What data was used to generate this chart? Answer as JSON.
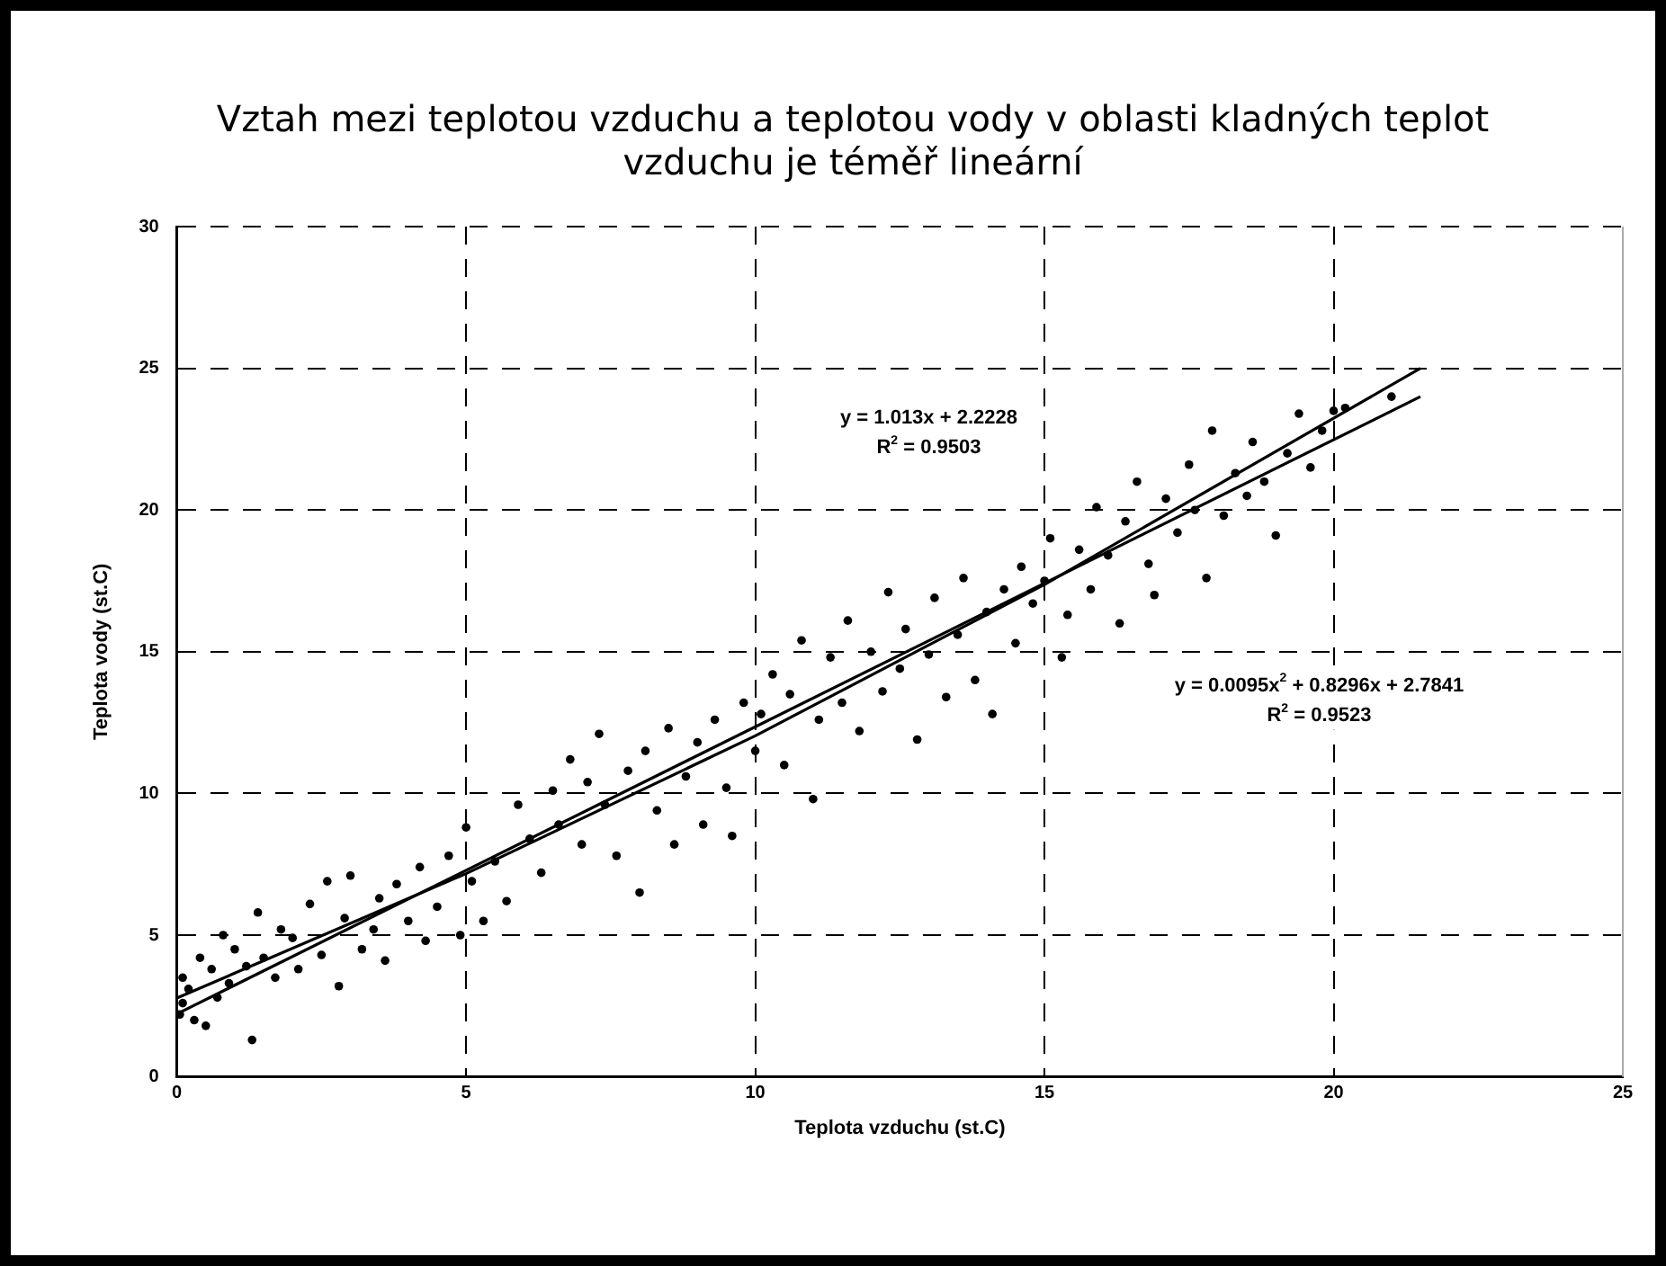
{
  "chart_data": {
    "type": "scatter",
    "title": "Vztah mezi teplotou vzduchu a teplotou vody v oblasti kladných teplot vzduchu je téměř lineární",
    "xlabel": "Teplota vzduchu (st.C)",
    "ylabel": "Teplota vody (st.C)",
    "xlim": [
      0,
      25
    ],
    "xticks": [
      0,
      5,
      10,
      15,
      20,
      25
    ],
    "ylim": [
      0,
      30
    ],
    "yticks": [
      0,
      5,
      10,
      15,
      20,
      25,
      30
    ],
    "grid": true,
    "legend": false,
    "series": [
      {
        "marker": "circle",
        "color": "#000000",
        "x": [
          0.05,
          0.1,
          0.1,
          0.2,
          0.3,
          0.4,
          0.5,
          0.6,
          0.7,
          0.8,
          0.9,
          1.0,
          1.2,
          1.3,
          1.4,
          1.5,
          1.7,
          1.8,
          2.0,
          2.1,
          2.3,
          2.5,
          2.6,
          2.8,
          2.9,
          3.0,
          3.2,
          3.4,
          3.5,
          3.6,
          3.8,
          4.0,
          4.2,
          4.3,
          4.5,
          4.7,
          4.9,
          5.0,
          5.1,
          5.3,
          5.5,
          5.7,
          5.9,
          6.1,
          6.3,
          6.5,
          6.6,
          6.8,
          7.0,
          7.1,
          7.3,
          7.4,
          7.6,
          7.8,
          8.0,
          8.1,
          8.3,
          8.5,
          8.6,
          8.8,
          9.0,
          9.1,
          9.3,
          9.5,
          9.6,
          9.8,
          10.0,
          10.1,
          10.3,
          10.5,
          10.6,
          10.8,
          11.0,
          11.1,
          11.3,
          11.5,
          11.6,
          11.8,
          12.0,
          12.2,
          12.3,
          12.5,
          12.6,
          12.8,
          13.0,
          13.1,
          13.3,
          13.5,
          13.6,
          13.8,
          14.0,
          14.1,
          14.3,
          14.5,
          14.6,
          14.8,
          15.0,
          15.1,
          15.3,
          15.4,
          15.6,
          15.8,
          15.9,
          16.1,
          16.3,
          16.4,
          16.6,
          16.8,
          16.9,
          17.1,
          17.3,
          17.5,
          17.6,
          17.8,
          17.9,
          18.1,
          18.3,
          18.5,
          18.6,
          18.8,
          19.0,
          19.2,
          19.4,
          19.6,
          19.8,
          20.0,
          20.2,
          21.0
        ],
        "values": [
          2.2,
          3.5,
          2.6,
          3.1,
          2.0,
          4.2,
          1.8,
          3.8,
          2.8,
          5.0,
          3.3,
          4.5,
          3.9,
          1.3,
          5.8,
          4.2,
          3.5,
          5.2,
          4.9,
          3.8,
          6.1,
          4.3,
          6.9,
          3.2,
          5.6,
          7.1,
          4.5,
          5.2,
          6.3,
          4.1,
          6.8,
          5.5,
          7.4,
          4.8,
          6.0,
          7.8,
          5.0,
          8.8,
          6.9,
          5.5,
          7.6,
          6.2,
          9.6,
          8.4,
          7.2,
          10.1,
          8.9,
          11.2,
          8.2,
          10.4,
          12.1,
          9.6,
          7.8,
          10.8,
          6.5,
          11.5,
          9.4,
          12.3,
          8.2,
          10.6,
          11.8,
          8.9,
          12.6,
          10.2,
          8.5,
          13.2,
          11.5,
          12.8,
          14.2,
          11.0,
          13.5,
          15.4,
          9.8,
          12.6,
          14.8,
          13.2,
          16.1,
          12.2,
          15.0,
          13.6,
          17.1,
          14.4,
          15.8,
          11.9,
          14.9,
          16.9,
          13.4,
          15.6,
          17.6,
          14.0,
          16.4,
          12.8,
          17.2,
          15.3,
          18.0,
          16.7,
          17.5,
          19.0,
          14.8,
          16.3,
          18.6,
          17.2,
          20.1,
          18.4,
          16.0,
          19.6,
          21.0,
          18.1,
          17.0,
          20.4,
          19.2,
          21.6,
          20.0,
          17.6,
          22.8,
          19.8,
          21.3,
          20.5,
          22.4,
          21.0,
          19.1,
          22.0,
          23.4,
          21.5,
          22.8,
          23.5,
          23.6,
          24.0
        ]
      },
      {
        "type": "line",
        "marker": "none",
        "color": "#000000",
        "x": [
          0,
          21.5
        ],
        "values": [
          2.22,
          24.0
        ]
      },
      {
        "type": "line",
        "marker": "none",
        "color": "#000000",
        "x": [
          0,
          5,
          10,
          15,
          21.5
        ],
        "values": [
          2.78,
          7.17,
          12.03,
          17.37,
          25.0
        ]
      }
    ],
    "annotations": [
      "y = 1.013x + 2.2228",
      "R$^{2}$ = 0.9503",
      "y = 0.0095x$^{2}$ + 0.8296x + 2.7841",
      "R$^{2}$ = 0.9523"
    ]
  }
}
